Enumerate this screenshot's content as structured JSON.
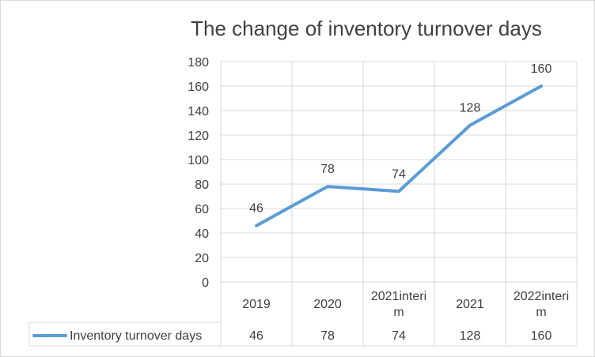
{
  "chart_data": {
    "type": "line",
    "title": "The change of inventory turnover days",
    "categories": [
      "2019",
      "2020",
      "2021interim",
      "2021",
      "2022interim"
    ],
    "category_display": [
      [
        "2019"
      ],
      [
        "2020"
      ],
      [
        "2021interi",
        "m"
      ],
      [
        "2021"
      ],
      [
        "2022interi",
        "m"
      ]
    ],
    "series": [
      {
        "name": "Inventory turnover days",
        "values": [
          46,
          78,
          74,
          128,
          160
        ],
        "color": "#5B9BD5"
      }
    ],
    "ylim": [
      0,
      180
    ],
    "yticks": [
      0,
      20,
      40,
      60,
      80,
      100,
      120,
      140,
      160,
      180
    ],
    "grid": true,
    "data_labels": true,
    "data_table": true,
    "legend": "in-data-table"
  }
}
